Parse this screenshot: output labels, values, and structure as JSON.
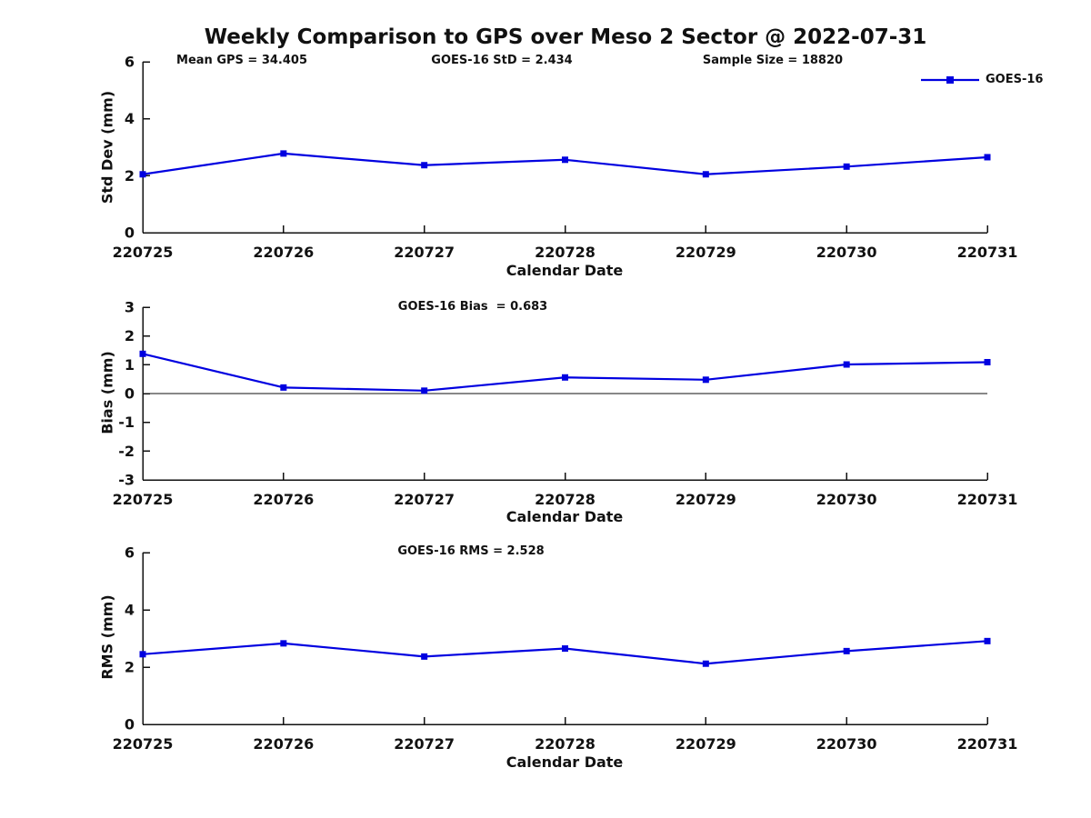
{
  "title": "Weekly Comparison to GPS over Meso 2 Sector @ 2022-07-31",
  "legend": {
    "label": "GOES-16",
    "position": "top-right",
    "line_color": "#0000e0"
  },
  "colors": {
    "series": "#0000e0",
    "axis": "#111111",
    "text": "#111111",
    "background": "#ffffff"
  },
  "chart_data": [
    {
      "type": "line",
      "name": "std-dev-panel",
      "ylabel": "Std Dev (mm)",
      "xlabel": "Calendar Date",
      "categories": [
        "220725",
        "220726",
        "220727",
        "220728",
        "220729",
        "220730",
        "220731"
      ],
      "series": [
        {
          "name": "GOES-16",
          "values": [
            2.05,
            2.78,
            2.37,
            2.56,
            2.05,
            2.32,
            2.65
          ]
        }
      ],
      "ylim": [
        0,
        6
      ],
      "yticks": [
        0,
        2,
        4,
        6
      ],
      "zero_line": false,
      "grid": false,
      "annotations": [
        "Mean GPS = 34.405",
        "GOES-16 StD = 2.434",
        "Sample Size = 18820"
      ]
    },
    {
      "type": "line",
      "name": "bias-panel",
      "ylabel": "Bias (mm)",
      "xlabel": "Calendar Date",
      "categories": [
        "220725",
        "220726",
        "220727",
        "220728",
        "220729",
        "220730",
        "220731"
      ],
      "series": [
        {
          "name": "GOES-16",
          "values": [
            1.38,
            0.21,
            0.1,
            0.56,
            0.48,
            1.01,
            1.09
          ]
        }
      ],
      "ylim": [
        -3,
        3
      ],
      "yticks": [
        -3,
        -2,
        -1,
        0,
        1,
        2,
        3
      ],
      "zero_line": true,
      "grid": false,
      "annotations": [
        "GOES-16 Bias  = 0.683"
      ]
    },
    {
      "type": "line",
      "name": "rms-panel",
      "ylabel": "RMS (mm)",
      "xlabel": "Calendar Date",
      "categories": [
        "220725",
        "220726",
        "220727",
        "220728",
        "220729",
        "220730",
        "220731"
      ],
      "series": [
        {
          "name": "GOES-16",
          "values": [
            2.45,
            2.83,
            2.37,
            2.65,
            2.12,
            2.56,
            2.91
          ]
        }
      ],
      "ylim": [
        0,
        6
      ],
      "yticks": [
        0,
        2,
        4,
        6
      ],
      "zero_line": false,
      "grid": false,
      "annotations": [
        "GOES-16 RMS = 2.528"
      ]
    }
  ]
}
